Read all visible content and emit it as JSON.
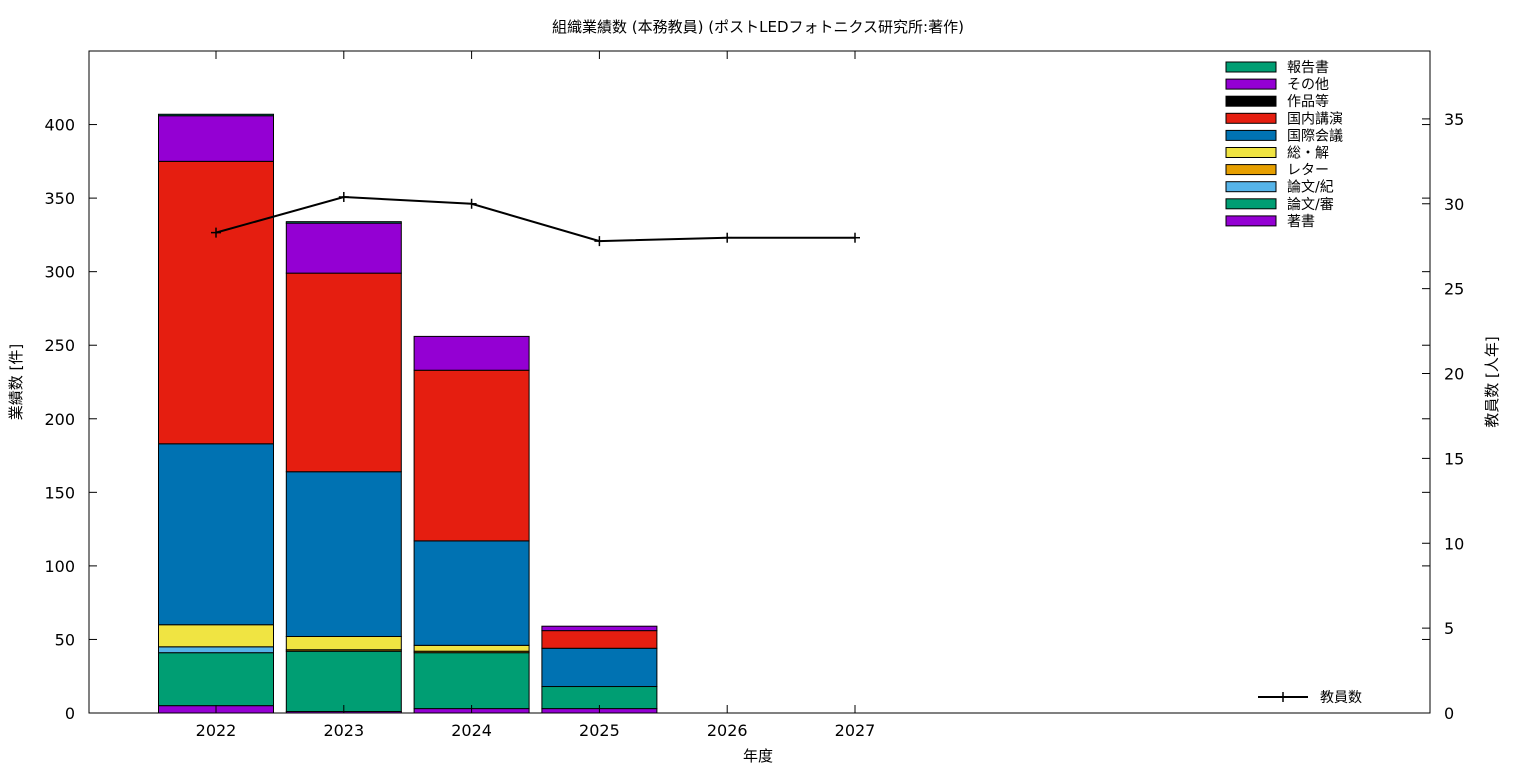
{
  "chart_data": {
    "type": "bar",
    "stacked": true,
    "title": "組織業績数 (本務教員) (ポストLEDフォトニクス研究所:著作)",
    "xlabel": "年度",
    "ylabel": "業績数 [件]",
    "y2label": "教員数 [人年]",
    "categories": [
      "2022",
      "2023",
      "2024",
      "2025",
      "2026",
      "2027"
    ],
    "ylim": [
      0,
      450
    ],
    "yticks": [
      0,
      50,
      100,
      150,
      200,
      250,
      300,
      350,
      400
    ],
    "y2lim": [
      0,
      39
    ],
    "y2ticks": [
      0,
      5,
      10,
      15,
      20,
      25,
      30,
      35
    ],
    "grid": false,
    "legend_position": "top-right",
    "series": [
      {
        "name": "著書",
        "color": "#9400d3",
        "values": [
          5,
          1,
          3,
          3,
          0,
          0
        ]
      },
      {
        "name": "論文/審",
        "color": "#009e73",
        "values": [
          36,
          41,
          38,
          15,
          0,
          0
        ]
      },
      {
        "name": "論文/紀",
        "color": "#56b4e9",
        "values": [
          4,
          0,
          0,
          0,
          0,
          0
        ]
      },
      {
        "name": "レター",
        "color": "#e69f00",
        "values": [
          0,
          1,
          1,
          0,
          0,
          0
        ]
      },
      {
        "name": "総・解",
        "color": "#f0e442",
        "values": [
          15,
          9,
          4,
          0,
          0,
          0
        ]
      },
      {
        "name": "国際会議",
        "color": "#0072b2",
        "values": [
          123,
          112,
          71,
          26,
          0,
          0
        ]
      },
      {
        "name": "国内講演",
        "color": "#e51e10",
        "values": [
          192,
          135,
          116,
          12,
          0,
          0
        ]
      },
      {
        "name": "作品等",
        "color": "#000000",
        "values": [
          0,
          0,
          0,
          0,
          0,
          0
        ]
      },
      {
        "name": "その他",
        "color": "#9400d3",
        "values": [
          31,
          34,
          23,
          3,
          0,
          0
        ]
      },
      {
        "name": "報告書",
        "color": "#009e73",
        "values": [
          1,
          1,
          0,
          0,
          0,
          0
        ]
      }
    ],
    "line_series": {
      "name": "教員数",
      "color": "#000000",
      "axis": "y2",
      "values": [
        28.3,
        30.4,
        30.0,
        27.8,
        28.0,
        28.0
      ]
    }
  }
}
